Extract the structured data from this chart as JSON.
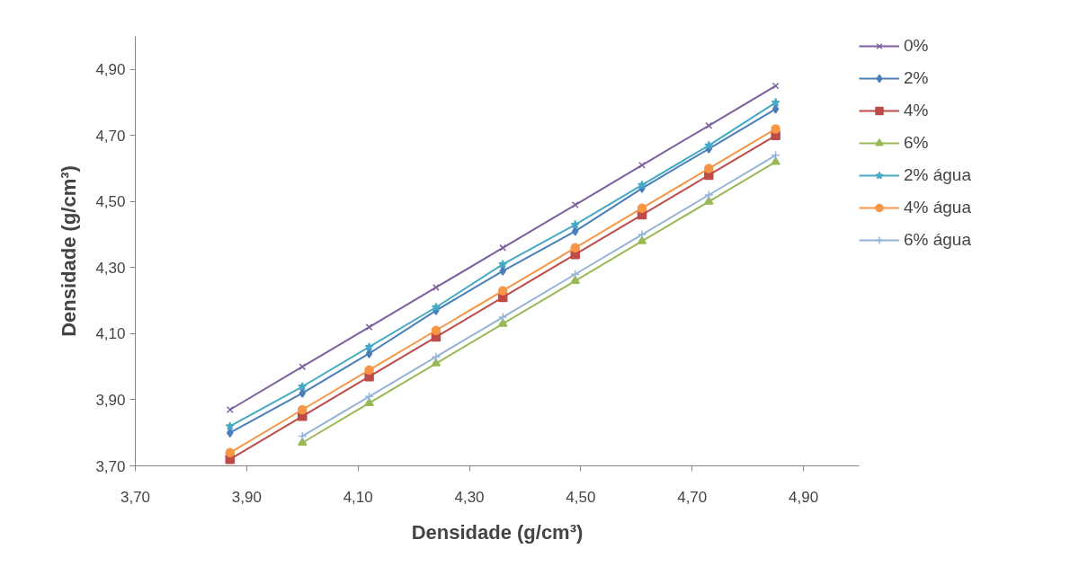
{
  "chart_data": {
    "type": "line",
    "xlabel": "Densidade (g/cm³)",
    "ylabel": "Densidade (g/cm³)",
    "x": [
      3.87,
      4.0,
      4.12,
      4.24,
      4.36,
      4.49,
      4.61,
      4.73,
      4.85
    ],
    "xlim": [
      3.7,
      5.0
    ],
    "xticks": [
      {
        "value": 3.7,
        "label": "3,70"
      },
      {
        "value": 3.9,
        "label": "3,90"
      },
      {
        "value": 4.1,
        "label": "4,10"
      },
      {
        "value": 4.3,
        "label": "4,30"
      },
      {
        "value": 4.5,
        "label": "4,50"
      },
      {
        "value": 4.7,
        "label": "4,70"
      },
      {
        "value": 4.9,
        "label": "4,90"
      }
    ],
    "ylim": [
      3.7,
      5.0
    ],
    "yticks": [
      {
        "value": 3.7,
        "label": "3,70"
      },
      {
        "value": 3.9,
        "label": "3,90"
      },
      {
        "value": 4.1,
        "label": "4,10"
      },
      {
        "value": 4.3,
        "label": "4,30"
      },
      {
        "value": 4.5,
        "label": "4,50"
      },
      {
        "value": 4.7,
        "label": "4,70"
      },
      {
        "value": 4.9,
        "label": "4,90"
      }
    ],
    "grid": false,
    "legend": "right",
    "series": [
      {
        "name": "0%",
        "color": "#7d5fa0",
        "marker": "x",
        "values": [
          3.87,
          4.0,
          4.12,
          4.24,
          4.36,
          4.49,
          4.61,
          4.73,
          4.85
        ]
      },
      {
        "name": "2%",
        "color": "#4a7ebb",
        "marker": "diamond",
        "values": [
          3.8,
          3.92,
          4.04,
          4.17,
          4.29,
          4.41,
          4.54,
          4.66,
          4.78
        ]
      },
      {
        "name": "4%",
        "color": "#be4b48",
        "marker": "square",
        "values": [
          3.72,
          3.85,
          3.97,
          4.09,
          4.21,
          4.34,
          4.46,
          4.58,
          4.7
        ]
      },
      {
        "name": "6%",
        "color": "#98b954",
        "marker": "triangle",
        "values": [
          null,
          3.77,
          3.89,
          4.01,
          4.13,
          4.26,
          4.38,
          4.5,
          4.62
        ]
      },
      {
        "name": "2% água",
        "color": "#46aac5",
        "marker": "star",
        "values": [
          3.82,
          3.94,
          4.06,
          4.18,
          4.31,
          4.43,
          4.55,
          4.67,
          4.8
        ]
      },
      {
        "name": "4% água",
        "color": "#f79646",
        "marker": "circle",
        "values": [
          3.74,
          3.87,
          3.99,
          4.11,
          4.23,
          4.36,
          4.48,
          4.6,
          4.72
        ]
      },
      {
        "name": "6% água",
        "color": "#95b3d7",
        "marker": "cross",
        "values": [
          null,
          3.79,
          3.91,
          4.03,
          4.15,
          4.28,
          4.4,
          4.52,
          4.64
        ]
      }
    ]
  }
}
